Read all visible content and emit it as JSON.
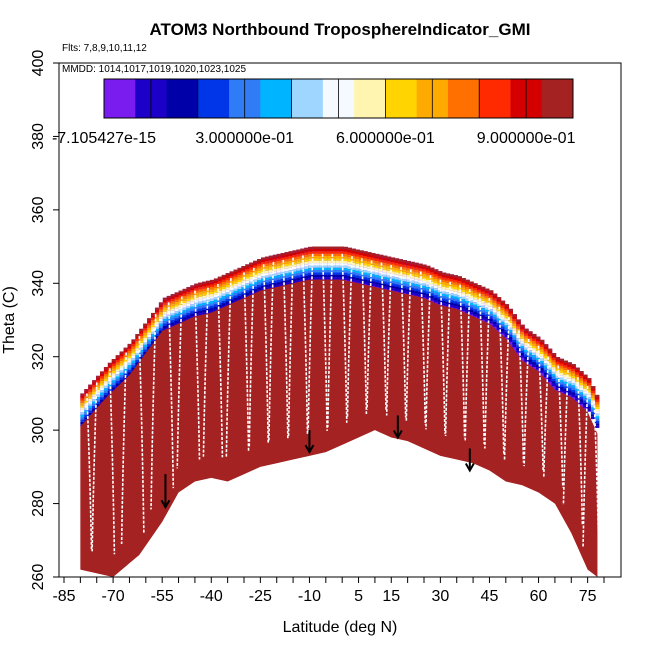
{
  "chart_data": {
    "type": "heatmap",
    "title": "ATOM3 Northbound TroposphereIndicator_GMI",
    "flights_label": "Flts: 7,8,9,10,11,12",
    "dates_label": "MMDD: 1014,1017,1019,1020,1023,1025",
    "xlabel": "Latitude (deg N)",
    "ylabel": "Theta (C)",
    "xlim": [
      -85,
      80
    ],
    "ylim": [
      260,
      400
    ],
    "x_ticks": [
      -85,
      -70,
      -55,
      -40,
      -25,
      -10,
      5,
      15,
      30,
      45,
      60,
      75
    ],
    "y_ticks": [
      260,
      280,
      300,
      320,
      340,
      360,
      380,
      400
    ],
    "colorbar": {
      "tick_labels": [
        "-7.105427e-15",
        "3.000000e-01",
        "6.000000e-01",
        "9.000000e-01"
      ],
      "tick_values": [
        0.0,
        0.3,
        0.6,
        0.9
      ],
      "range": [
        0.0,
        1.0
      ],
      "colors": [
        "#7a1cf0",
        "#1d00c8",
        "#0000a8",
        "#0036e8",
        "#2f7cf6",
        "#00b4ff",
        "#9ed6ff",
        "#f4faff",
        "#fff4b0",
        "#ffd400",
        "#ffaa00",
        "#ff7000",
        "#ff2a00",
        "#d40000",
        "#a52222"
      ]
    },
    "tropopause_theta_profile": {
      "latitude": [
        -80,
        -72,
        -65,
        -60,
        -55,
        -50,
        -45,
        -40,
        -35,
        -30,
        -25,
        -20,
        -15,
        -10,
        -5,
        0,
        5,
        10,
        15,
        20,
        25,
        30,
        35,
        40,
        45,
        50,
        55,
        60,
        65,
        70,
        75,
        78
      ],
      "theta": [
        310,
        318,
        324,
        330,
        336,
        338,
        340,
        341,
        343,
        345,
        347,
        348,
        349,
        350,
        350,
        350,
        349,
        348,
        347,
        346,
        345,
        343,
        342,
        340,
        338,
        334,
        328,
        325,
        320,
        318,
        314,
        308
      ]
    },
    "stratospheric_mask_lower_theta": {
      "latitude": [
        -80,
        -72,
        -66,
        -60,
        -55,
        -50,
        -45,
        -40,
        -35,
        -30,
        -25,
        -20,
        -15,
        -10,
        -5,
        0,
        5,
        10,
        15,
        20,
        25,
        30,
        35,
        40,
        45,
        50,
        55,
        60,
        65,
        70,
        75,
        78
      ],
      "theta": [
        304,
        305,
        306,
        307,
        306,
        306,
        305,
        305,
        306,
        307,
        308,
        309,
        310,
        311,
        311,
        312,
        312,
        312,
        311,
        311,
        310,
        310,
        309,
        309,
        308,
        307,
        307,
        306,
        306,
        305,
        305,
        304
      ]
    },
    "data_floor_theta": {
      "latitude": [
        -80,
        -70,
        -62,
        -55,
        -50,
        -45,
        -40,
        -35,
        -30,
        -25,
        -20,
        -15,
        -10,
        -5,
        0,
        5,
        10,
        15,
        20,
        25,
        30,
        35,
        40,
        45,
        50,
        55,
        60,
        65,
        70,
        75,
        78
      ],
      "theta": [
        262,
        260,
        266,
        275,
        283,
        286,
        287,
        286,
        288,
        290,
        291,
        292,
        293,
        294,
        296,
        298,
        300,
        298,
        297,
        295,
        293,
        292,
        291,
        289,
        286,
        285,
        283,
        280,
        272,
        262,
        260
      ]
    },
    "arrows": [
      {
        "latitude": -54,
        "theta_top": 288,
        "theta_tip": 279
      },
      {
        "latitude": -10,
        "theta_top": 300,
        "theta_tip": 294
      },
      {
        "latitude": 17,
        "theta_top": 304,
        "theta_tip": 298
      },
      {
        "latitude": 39,
        "theta_top": 295,
        "theta_tip": 289
      }
    ],
    "vertical_profiles_latitudes": [
      -78,
      -75,
      -71,
      -66,
      -62,
      -57,
      -53,
      -49,
      -45,
      -41,
      -38,
      -34,
      -30,
      -27,
      -24,
      -21,
      -18,
      -15,
      -12,
      -9,
      -6,
      -3,
      0,
      3,
      6,
      9,
      12,
      15,
      18,
      21,
      24,
      27,
      30,
      33,
      36,
      39,
      42,
      45,
      48,
      51,
      54,
      57,
      60,
      63,
      66,
      69,
      72,
      75,
      77
    ]
  }
}
